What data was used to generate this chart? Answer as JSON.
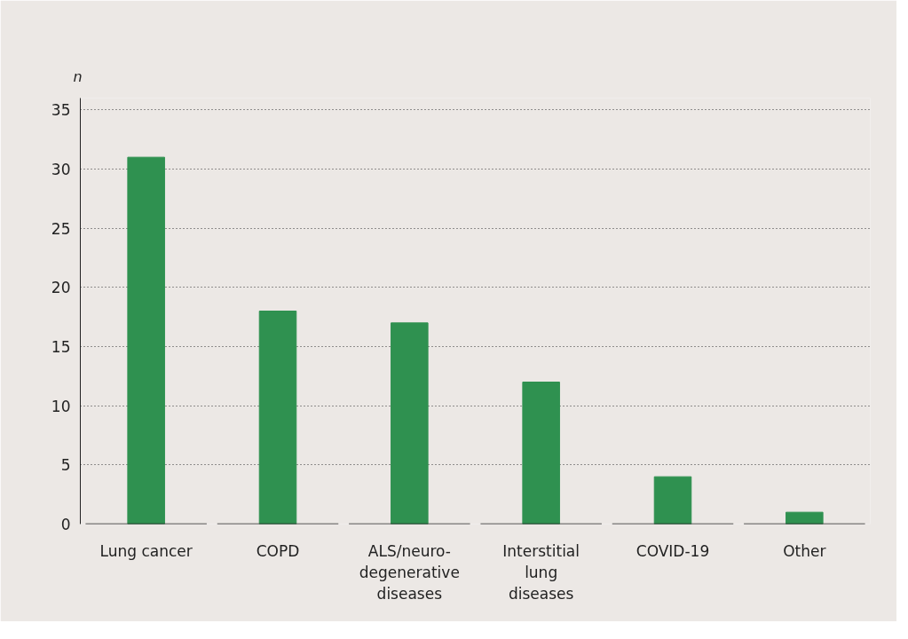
{
  "chart_data": {
    "type": "bar",
    "ylabel": "n",
    "categories": [
      "Lung cancer",
      "COPD",
      "ALS/neuro-\ndegenerative\ndiseases",
      "Interstitial\nlung\ndiseases",
      "COVID-19",
      "Other"
    ],
    "values": [
      31,
      18,
      17,
      12,
      4,
      1
    ],
    "color": "#2f9150",
    "ylim": [
      0,
      36
    ],
    "yticks": [
      0,
      5,
      10,
      15,
      20,
      25,
      30,
      35
    ],
    "grid": "y"
  }
}
